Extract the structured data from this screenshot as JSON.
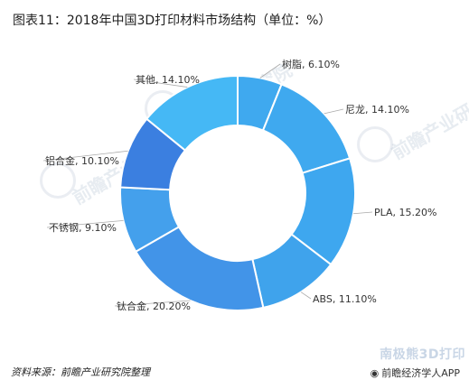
{
  "title": "图表11：2018年中国3D打印材料市场结构（单位：%）",
  "chart_data": {
    "type": "pie",
    "donut": true,
    "unit": "%",
    "categories": [
      "树脂",
      "尼龙",
      "PLA",
      "ABS",
      "钛合金",
      "不锈钢",
      "铝合金",
      "其他"
    ],
    "values": [
      6.1,
      14.1,
      15.2,
      11.1,
      20.2,
      9.1,
      10.1,
      14.1
    ],
    "data_labels": [
      "树脂, 6.10%",
      "尼龙, 14.10%",
      "PLA, 15.20%",
      "ABS, 11.10%",
      "钛合金, 20.20%",
      "不锈钢, 9.10%",
      "铝合金, 10.10%",
      "其他, 14.10%"
    ],
    "colors": [
      "#3fa9ef",
      "#3fa9ef",
      "#3ea7ef",
      "#3fa3ec",
      "#4294e8",
      "#44a0ec",
      "#3b7fe0",
      "#45b8f5"
    ]
  },
  "source": "资料来源：前瞻产业研究院整理",
  "watermarks": [
    "前瞻产业研究院",
    "前瞻产业研究院",
    "前瞻产业研究院"
  ],
  "brand": "南极熊3D打印",
  "app_credit": "前瞻经济学人APP"
}
